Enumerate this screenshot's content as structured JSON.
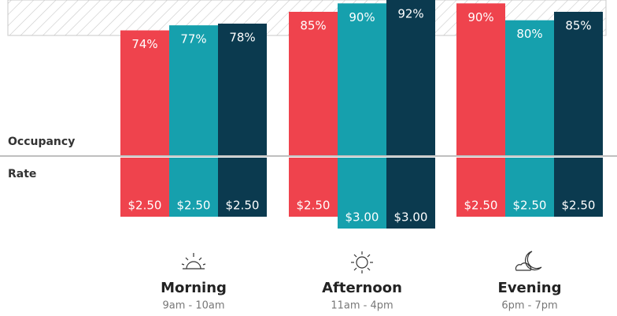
{
  "chart_data": [
    {
      "type": "bar",
      "label": "Occupancy",
      "categories": [
        "Morning",
        "Afternoon",
        "Evening"
      ],
      "subtitles": [
        "9am - 10am",
        "11am - 4pm",
        "6pm - 7pm"
      ],
      "ylim": [
        0,
        92
      ],
      "series": [
        {
          "color": "#ef434d",
          "values": [
            74,
            85,
            90
          ],
          "value_labels": [
            "74%",
            "85%",
            "90%"
          ]
        },
        {
          "color": "#16a0ad",
          "values": [
            77,
            90,
            80
          ],
          "value_labels": [
            "77%",
            "90%",
            "80%"
          ]
        },
        {
          "color": "#0b3a4f",
          "values": [
            78,
            92,
            85
          ],
          "value_labels": [
            "78%",
            "92%",
            "85%"
          ]
        }
      ]
    },
    {
      "type": "hanging-bar",
      "label": "Rate",
      "ylim": [
        0,
        3
      ],
      "series": [
        {
          "color": "#ef434d",
          "values": [
            2.5,
            2.5,
            2.5
          ],
          "value_labels": [
            "$2.50",
            "$2.50",
            "$2.50"
          ]
        },
        {
          "color": "#16a0ad",
          "values": [
            2.5,
            3.0,
            2.5
          ],
          "value_labels": [
            "$2.50",
            "$3.00",
            "$2.50"
          ]
        },
        {
          "color": "#0b3a4f",
          "values": [
            2.5,
            3.0,
            2.5
          ],
          "value_labels": [
            "$2.50",
            "$3.00",
            "$2.50"
          ]
        }
      ]
    }
  ]
}
